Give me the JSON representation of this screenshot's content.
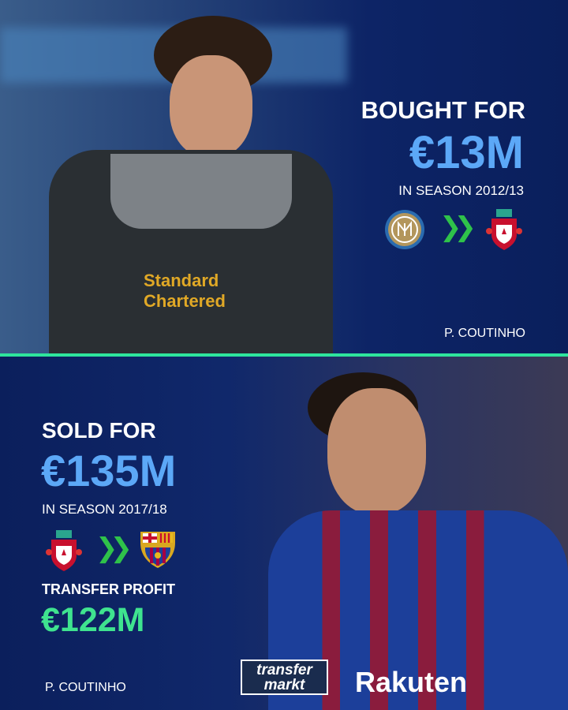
{
  "bought": {
    "heading": "BOUGHT FOR",
    "amount": "€13M",
    "season": "IN SEASON 2012/13",
    "from_club": "inter-milan-crest",
    "to_club": "liverpool-crest",
    "player": "P. COUTINHO",
    "jersey_text": "Standard Chartered"
  },
  "sold": {
    "heading": "SOLD FOR",
    "amount": "€135M",
    "season": "IN SEASON 2017/18",
    "from_club": "liverpool-crest",
    "to_club": "barcelona-crest",
    "profit_label": "TRANSFER PROFIT",
    "profit_amount": "€122M",
    "player": "P. COUTINHO",
    "jersey_text": "Rakuten"
  },
  "brand": {
    "line1": "transfer",
    "line2": "markt"
  },
  "colors": {
    "accent_blue": "#5ca8f7",
    "profit_green": "#3fe38f",
    "divider": "#2ee59d",
    "background": "#0c1f5a"
  }
}
